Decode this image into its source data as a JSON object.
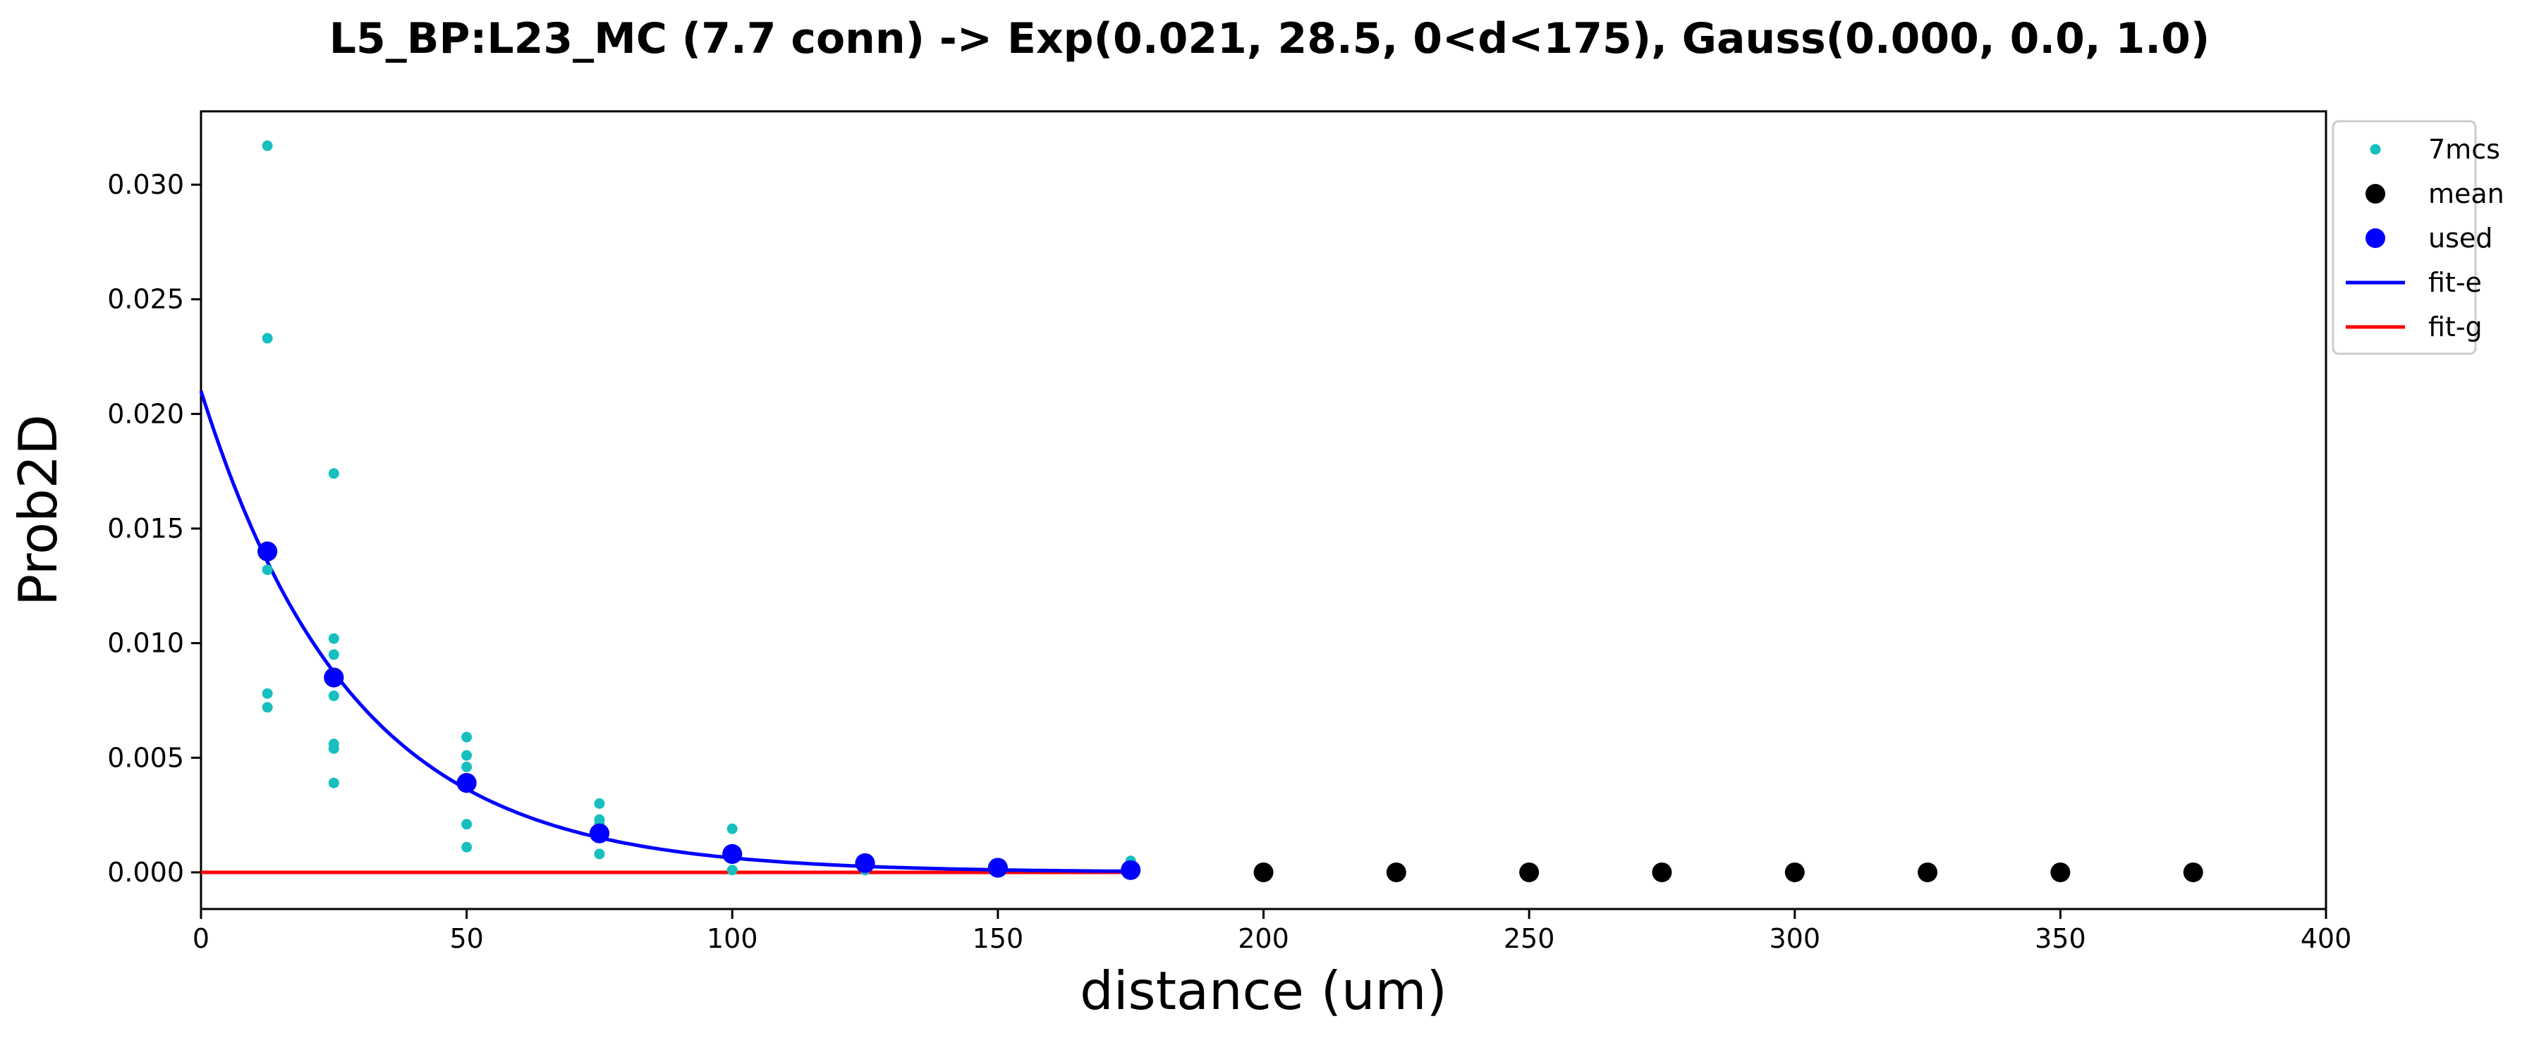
{
  "chart_data": {
    "type": "scatter",
    "title": "L5_BP:L23_MC (7.7 conn) -> Exp(0.021, 28.5, 0<d<175), Gauss(0.000, 0.0, 1.0)",
    "xlabel": "distance (um)",
    "ylabel": "Prob2D",
    "xlim": [
      0,
      400
    ],
    "ylim": [
      -0.0016,
      0.0332
    ],
    "x_ticks": [
      "0",
      "50",
      "100",
      "150",
      "200",
      "250",
      "300",
      "350",
      "400"
    ],
    "y_ticks": [
      "0.000",
      "0.005",
      "0.010",
      "0.015",
      "0.020",
      "0.025",
      "0.030"
    ],
    "legend_position": "outside upper-right",
    "series": [
      {
        "name": "7mcs",
        "kind": "points",
        "color": "#17bfbf",
        "points": [
          [
            12.5,
            0.0317
          ],
          [
            12.5,
            0.0233
          ],
          [
            12.5,
            0.0132
          ],
          [
            12.5,
            0.0078
          ],
          [
            12.5,
            0.0072
          ],
          [
            25,
            0.0174
          ],
          [
            25,
            0.0102
          ],
          [
            25,
            0.0095
          ],
          [
            25,
            0.0077
          ],
          [
            25,
            0.0056
          ],
          [
            25,
            0.0054
          ],
          [
            25,
            0.0039
          ],
          [
            50,
            0.0059
          ],
          [
            50,
            0.0051
          ],
          [
            50,
            0.0046
          ],
          [
            50,
            0.0039
          ],
          [
            50,
            0.0021
          ],
          [
            50,
            0.0011
          ],
          [
            75,
            0.003
          ],
          [
            75,
            0.0023
          ],
          [
            75,
            0.0021
          ],
          [
            75,
            0.0019
          ],
          [
            75,
            0.0016
          ],
          [
            75,
            0.0008
          ],
          [
            100,
            0.0019
          ],
          [
            100,
            0.001
          ],
          [
            100,
            0.0007
          ],
          [
            100,
            0.0006
          ],
          [
            100,
            0.0001
          ],
          [
            125,
            0.0005
          ],
          [
            125,
            0.0004
          ],
          [
            125,
            0.0003
          ],
          [
            125,
            0.0001
          ],
          [
            150,
            0.0003
          ],
          [
            150,
            0.0002
          ],
          [
            175,
            0.0005
          ],
          [
            175,
            0.0003
          ],
          [
            175,
            0.0001
          ]
        ]
      },
      {
        "name": "mean",
        "kind": "points",
        "color": "#000000",
        "points": [
          [
            12.5,
            0.014
          ],
          [
            25,
            0.0085
          ],
          [
            50,
            0.0039
          ],
          [
            75,
            0.0017
          ],
          [
            100,
            0.0008
          ],
          [
            125,
            0.0004
          ],
          [
            150,
            0.0002
          ],
          [
            175,
            0.0001
          ],
          [
            200,
            0.0
          ],
          [
            225,
            0.0
          ],
          [
            250,
            0.0
          ],
          [
            275,
            0.0
          ],
          [
            300,
            0.0
          ],
          [
            325,
            0.0
          ],
          [
            350,
            0.0
          ],
          [
            375,
            0.0
          ]
        ]
      },
      {
        "name": "used",
        "kind": "points",
        "color": "#0000ff",
        "points": [
          [
            12.5,
            0.014
          ],
          [
            25,
            0.0085
          ],
          [
            50,
            0.0039
          ],
          [
            75,
            0.0017
          ],
          [
            100,
            0.0008
          ],
          [
            125,
            0.0004
          ],
          [
            150,
            0.0002
          ],
          [
            175,
            0.0001
          ]
        ]
      },
      {
        "name": "fit-e",
        "kind": "line",
        "color": "#0000ff",
        "function": "exp",
        "amplitude": 0.021,
        "length_um": 28.5,
        "domain": [
          0,
          175
        ]
      },
      {
        "name": "fit-g",
        "kind": "line",
        "color": "#ff0000",
        "points": [
          [
            0,
            0.0
          ],
          [
            175,
            0.0
          ]
        ]
      }
    ]
  }
}
